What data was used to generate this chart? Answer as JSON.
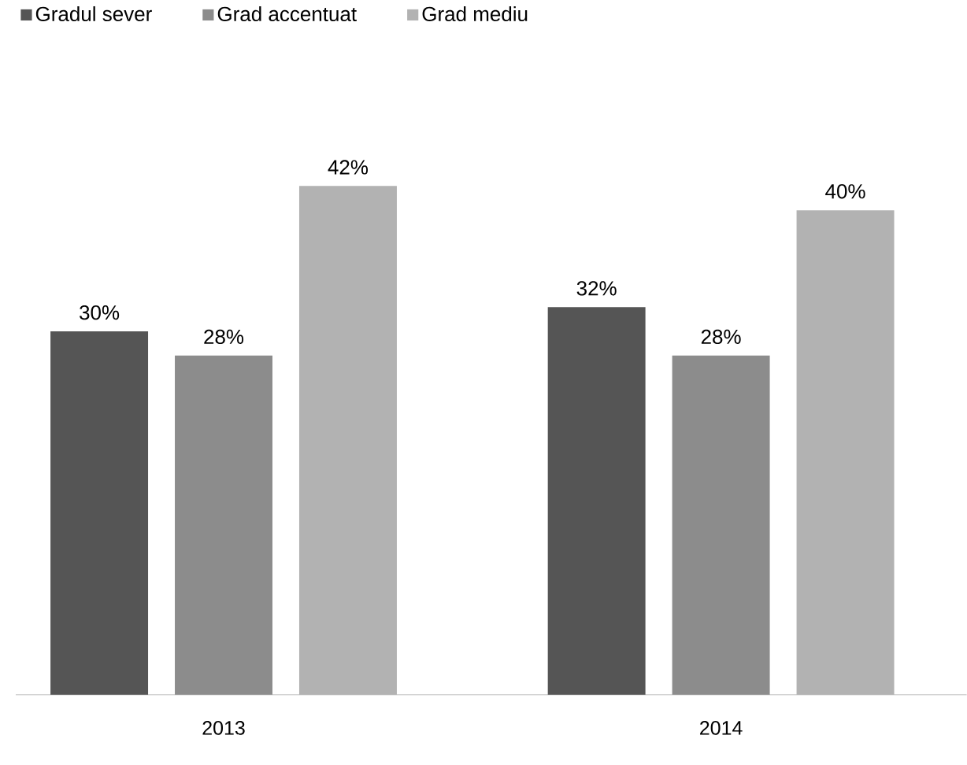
{
  "chart_data": {
    "type": "bar",
    "categories": [
      "2013",
      "2014"
    ],
    "series": [
      {
        "name": "Gradul sever",
        "color": "#555555",
        "values": [
          30,
          32
        ],
        "value_labels": [
          "30%",
          "32%"
        ]
      },
      {
        "name": "Grad accentuat",
        "color": "#8c8c8c",
        "values": [
          28,
          28
        ],
        "value_labels": [
          "28%",
          "28%"
        ]
      },
      {
        "name": "Grad mediu",
        "color": "#b2b2b2",
        "values": [
          42,
          40
        ],
        "value_labels": [
          "42%",
          "40%"
        ]
      }
    ],
    "tick_labels": "x",
    "legend": "top"
  }
}
